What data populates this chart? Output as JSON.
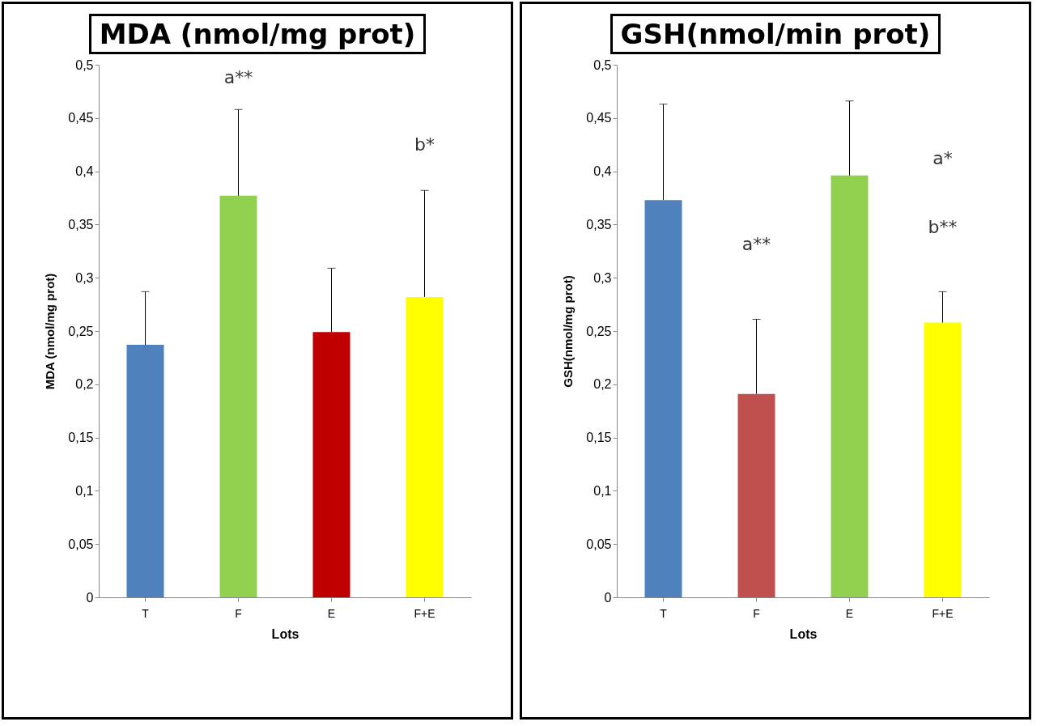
{
  "chart_data": [
    {
      "type": "bar",
      "title": "MDA (nmol/mg prot)",
      "xlabel": "Lots",
      "ylabel": "MDA (nmol/mg prot)",
      "categories": [
        "T",
        "F",
        "E",
        "F+E"
      ],
      "values": [
        0.237,
        0.377,
        0.249,
        0.282
      ],
      "colors": [
        "#4f81bd",
        "#92d050",
        "#c00000",
        "#ffff00"
      ],
      "errors": [
        [
          0.237,
          0.287
        ],
        [
          0.377,
          0.458
        ],
        [
          0.249,
          0.309
        ],
        [
          0.282,
          0.382
        ]
      ],
      "ylim": [
        0,
        0.5
      ],
      "yticks": [
        0,
        {
          "value": 0.05,
          "label": "0,05"
        },
        {
          "value": 0.1,
          "label": "0,1"
        },
        {
          "value": 0.15,
          "label": "0,15"
        },
        {
          "value": 0.2,
          "label": "0,2"
        },
        {
          "value": 0.25,
          "label": "0,25"
        },
        {
          "value": 0.3,
          "label": "0,3"
        },
        {
          "value": 0.35,
          "label": "0,35"
        },
        {
          "value": 0.4,
          "label": "0,4"
        },
        {
          "value": 0.45,
          "label": "0,45"
        },
        {
          "value": 0.5,
          "label": "0,5"
        }
      ],
      "grid": false,
      "annotations": [
        "a**",
        "b*"
      ]
    },
    {
      "type": "bar",
      "title": "GSH(nmol/min prot)",
      "xlabel": "Lots",
      "ylabel": "GSH(nmol/mg prot)",
      "categories": [
        "T",
        "F",
        "E",
        "F+E"
      ],
      "values": [
        0.373,
        0.191,
        0.396,
        0.258
      ],
      "colors": [
        "#4f81bd",
        "#c0504d",
        "#92d050",
        "#ffff00"
      ],
      "errors": [
        [
          0.373,
          0.463
        ],
        [
          0.191,
          0.261
        ],
        [
          0.396,
          0.466
        ],
        [
          0.258,
          0.287
        ]
      ],
      "ylim": [
        0,
        0.5
      ],
      "yticks": [
        0,
        {
          "value": 0.05,
          "label": "0,05"
        },
        {
          "value": 0.1,
          "label": "0,1"
        },
        {
          "value": 0.15,
          "label": "0,15"
        },
        {
          "value": 0.2,
          "label": "0,2"
        },
        {
          "value": 0.25,
          "label": "0,25"
        },
        {
          "value": 0.3,
          "label": "0,3"
        },
        {
          "value": 0.35,
          "label": "0,35"
        },
        {
          "value": 0.4,
          "label": "0,4"
        },
        {
          "value": 0.45,
          "label": "0,45"
        },
        {
          "value": 0.5,
          "label": "0,5"
        }
      ],
      "grid": false,
      "annotations": [
        "a**",
        "a*",
        "b**"
      ]
    }
  ]
}
